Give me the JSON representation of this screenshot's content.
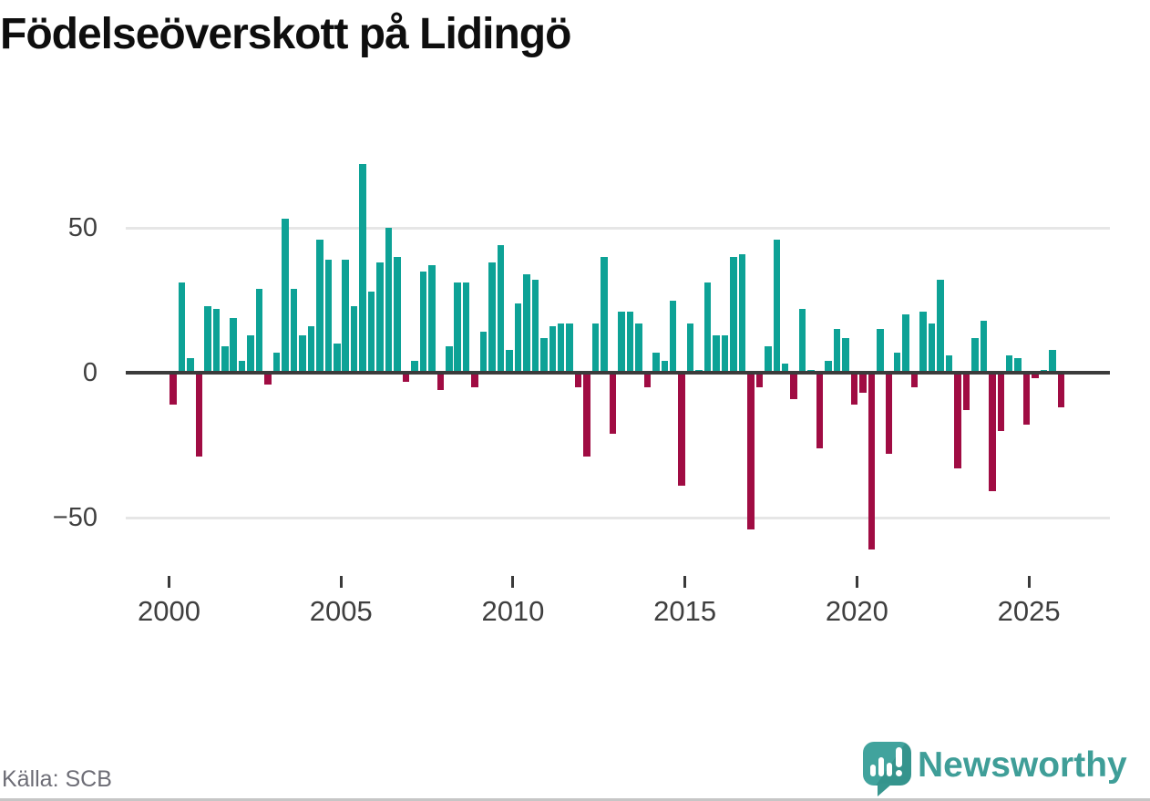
{
  "title": "Födelseöverskott på Lidingö",
  "source": "Källa: SCB",
  "branding": {
    "wordmark": "Newsworthy"
  },
  "colors": {
    "positive_bar": "#0da296",
    "negative_bar": "#a00c43",
    "zero_line": "#3b3b3b",
    "gridline": "#e6e6e6",
    "axis_text": "#3f3f3f",
    "title_text": "#0e0e0e",
    "source_text": "#6d6d76",
    "brand_teal": "#3f9e98",
    "background": "#ffffff"
  },
  "y_axis": {
    "ticks": [
      {
        "label": "50",
        "value": 50
      },
      {
        "label": "0",
        "value": 0
      },
      {
        "label": "−50",
        "value": -50
      }
    ]
  },
  "x_axis": {
    "tick_labels": [
      "2000",
      "2005",
      "2010",
      "2015",
      "2020",
      "2025"
    ]
  },
  "chart_data": {
    "type": "bar",
    "title": "Födelseöverskott på Lidingö",
    "frequency": "quarterly",
    "x_start": "2000 Q1",
    "x_end": "2025 Q4",
    "ylim": [
      -65,
      75
    ],
    "grid": "horizontal-at-50-0-minus50",
    "legend": "none",
    "series": [
      {
        "year": 2000,
        "quarters": [
          -11,
          31,
          5,
          -29
        ]
      },
      {
        "year": 2001,
        "quarters": [
          23,
          22,
          9,
          19
        ]
      },
      {
        "year": 2002,
        "quarters": [
          4,
          13,
          29,
          -4
        ]
      },
      {
        "year": 2003,
        "quarters": [
          7,
          53,
          29,
          13
        ]
      },
      {
        "year": 2004,
        "quarters": [
          16,
          46,
          39,
          10
        ]
      },
      {
        "year": 2005,
        "quarters": [
          39,
          23,
          72,
          28
        ]
      },
      {
        "year": 2006,
        "quarters": [
          38,
          50,
          40,
          -3
        ]
      },
      {
        "year": 2007,
        "quarters": [
          4,
          35,
          37,
          -6
        ]
      },
      {
        "year": 2008,
        "quarters": [
          9,
          31,
          31,
          -5
        ]
      },
      {
        "year": 2009,
        "quarters": [
          14,
          38,
          44,
          8
        ]
      },
      {
        "year": 2010,
        "quarters": [
          24,
          34,
          32,
          12
        ]
      },
      {
        "year": 2011,
        "quarters": [
          16,
          17,
          17,
          -5
        ]
      },
      {
        "year": 2012,
        "quarters": [
          -29,
          17,
          40,
          -21
        ]
      },
      {
        "year": 2013,
        "quarters": [
          21,
          21,
          17,
          -5
        ]
      },
      {
        "year": 2014,
        "quarters": [
          7,
          4,
          25,
          -39
        ]
      },
      {
        "year": 2015,
        "quarters": [
          17,
          1,
          31,
          13
        ]
      },
      {
        "year": 2016,
        "quarters": [
          13,
          40,
          41,
          -54
        ]
      },
      {
        "year": 2017,
        "quarters": [
          -5,
          9,
          46,
          3
        ]
      },
      {
        "year": 2018,
        "quarters": [
          -9,
          22,
          1,
          -26
        ]
      },
      {
        "year": 2019,
        "quarters": [
          4,
          15,
          12,
          -11
        ]
      },
      {
        "year": 2020,
        "quarters": [
          -7,
          -61,
          15,
          -28
        ]
      },
      {
        "year": 2021,
        "quarters": [
          7,
          20,
          -5,
          21
        ]
      },
      {
        "year": 2022,
        "quarters": [
          17,
          32,
          6,
          -33
        ]
      },
      {
        "year": 2023,
        "quarters": [
          -13,
          12,
          18,
          -41
        ]
      },
      {
        "year": 2024,
        "quarters": [
          -20,
          6,
          5,
          -18
        ]
      },
      {
        "year": 2025,
        "quarters": [
          -2,
          1,
          8,
          -12
        ]
      }
    ]
  }
}
